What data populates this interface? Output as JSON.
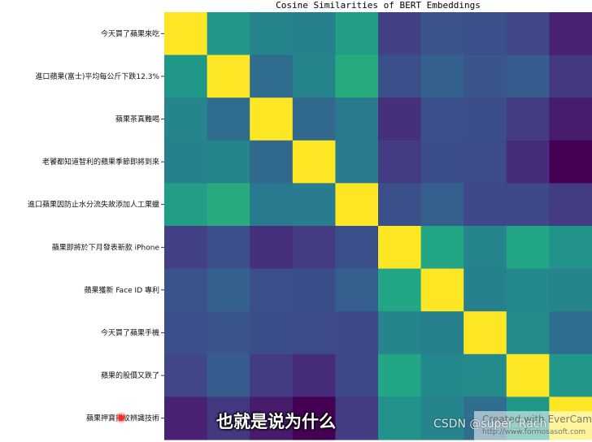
{
  "chart_data": {
    "type": "heatmap",
    "title": "Cosine Similarities of BERT Embeddings",
    "colormap": "viridis",
    "row_labels": [
      "今天買了蘋果來吃",
      "進口蘋果(富士)平均每公斤下跌12.3%",
      "蘋果茶真難喝",
      "老饕都知道智利的蘋果季節即將到來",
      "進口蘋果因防止水分流失故添加人工果蠟",
      "蘋果即將於下月發表新款 iPhone",
      "蘋果獲新 Face ID 專利",
      "今天買了蘋果手機",
      "蘋果的股價又跌了",
      "蘋果押寶指紋辨識技術"
    ],
    "values": [
      [
        1.0,
        0.66,
        0.56,
        0.54,
        0.7,
        0.24,
        0.32,
        0.31,
        0.26,
        0.12
      ],
      [
        0.66,
        1.0,
        0.44,
        0.56,
        0.76,
        0.31,
        0.39,
        0.33,
        0.37,
        0.21
      ],
      [
        0.56,
        0.44,
        1.0,
        0.43,
        0.51,
        0.17,
        0.31,
        0.3,
        0.22,
        0.1
      ],
      [
        0.54,
        0.56,
        0.43,
        1.0,
        0.52,
        0.22,
        0.3,
        0.29,
        0.16,
        0.0
      ],
      [
        0.7,
        0.76,
        0.51,
        0.52,
        1.0,
        0.31,
        0.38,
        0.27,
        0.27,
        0.22
      ],
      [
        0.24,
        0.31,
        0.17,
        0.22,
        0.31,
        1.0,
        0.74,
        0.56,
        0.74,
        0.64
      ],
      [
        0.32,
        0.39,
        0.31,
        0.3,
        0.38,
        0.74,
        1.0,
        0.54,
        0.59,
        0.56
      ],
      [
        0.31,
        0.33,
        0.3,
        0.29,
        0.27,
        0.56,
        0.54,
        1.0,
        0.6,
        0.45
      ],
      [
        0.26,
        0.37,
        0.22,
        0.16,
        0.27,
        0.74,
        0.59,
        0.6,
        1.0,
        0.66
      ],
      [
        0.12,
        0.21,
        0.1,
        0.0,
        0.22,
        0.64,
        0.56,
        0.45,
        0.66,
        1.0
      ]
    ]
  },
  "overlay": {
    "subtitle": "也就是说为什么",
    "watermark_csdn": "CSDN @super_Rach",
    "watermark_evercam": "Created with EverCam",
    "watermark_url": "http://www.formosasoft.com"
  }
}
